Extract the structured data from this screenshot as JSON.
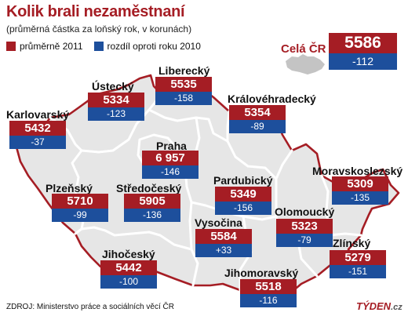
{
  "header": {
    "title": "Kolik brali nezaměstnaní",
    "subtitle": "(průměrná částka za loňský rok, v korunách)"
  },
  "legend": {
    "avg_label": "průměrně 2011",
    "diff_label": "rozdíl oproti roku 2010",
    "avg_color": "#a51d24",
    "diff_color": "#1d4f9c"
  },
  "national": {
    "name": "Celá ČR",
    "avg": "5586",
    "diff": "-112"
  },
  "regions": [
    {
      "name": "Liberecký",
      "avg": "5535",
      "diff": "-158"
    },
    {
      "name": "Ústecký",
      "avg": "5334",
      "diff": "-123"
    },
    {
      "name": "Královéhradecký",
      "avg": "5354",
      "diff": "-89"
    },
    {
      "name": "Karlovarský",
      "avg": "5432",
      "diff": "-37"
    },
    {
      "name": "Praha",
      "avg": "6 957",
      "diff": "-146"
    },
    {
      "name": "Moravskoslezský",
      "avg": "5309",
      "diff": "-135"
    },
    {
      "name": "Plzeňský",
      "avg": "5710",
      "diff": "-99"
    },
    {
      "name": "Středočeský",
      "avg": "5905",
      "diff": "-136"
    },
    {
      "name": "Pardubický",
      "avg": "5349",
      "diff": "-156"
    },
    {
      "name": "Vysočina",
      "avg": "5584",
      "diff": "+33"
    },
    {
      "name": "Olomoucký",
      "avg": "5323",
      "diff": "-79"
    },
    {
      "name": "Zlínský",
      "avg": "5279",
      "diff": "-151"
    },
    {
      "name": "Jihočeský",
      "avg": "5442",
      "diff": "-100"
    },
    {
      "name": "Jihomoravský",
      "avg": "5518",
      "diff": "-116"
    }
  ],
  "footer": {
    "source": "ZDROJ: Ministerstvo práce a sociálních věcí ČR",
    "brand": "TÝDEN",
    "brand_suffix": ".cz"
  },
  "map_colors": {
    "border": "#a51d24",
    "inner_lines": "#ffffff",
    "land": "#e4e4e4",
    "mini_map": "#c8c8c8"
  }
}
